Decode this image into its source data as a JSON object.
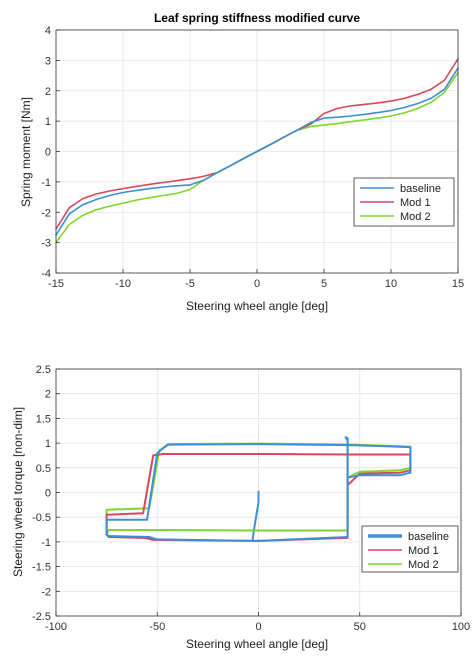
{
  "colors": {
    "baseline": "#3a8fd6",
    "mod1": "#d9475a",
    "mod2": "#7fd62d",
    "grid": "#e3e3e3",
    "axis": "#333333"
  },
  "chart_data": [
    {
      "type": "line",
      "title": "Leaf spring stiffness modified curve",
      "xlabel": "Steering wheel angle [deg]",
      "ylabel": "Spring moment [Nm]",
      "xlim": [
        -15,
        15
      ],
      "ylim": [
        -4,
        4
      ],
      "xticks": [
        -15,
        -10,
        -5,
        0,
        5,
        10,
        15
      ],
      "yticks": [
        -4,
        -3,
        -2,
        -1,
        0,
        1,
        2,
        3,
        4
      ],
      "grid": true,
      "legend_position": "lower-right",
      "series": [
        {
          "name": "baseline",
          "color_key": "baseline",
          "x": [
            -15,
            -14,
            -13,
            -12,
            -11,
            -10,
            -9,
            -8,
            -7,
            -6,
            -5,
            -4,
            -3,
            -2,
            -1,
            0,
            1,
            2,
            3,
            4,
            5,
            6,
            7,
            8,
            9,
            10,
            11,
            12,
            13,
            14,
            15
          ],
          "y": [
            -2.75,
            -2.05,
            -1.75,
            -1.58,
            -1.45,
            -1.35,
            -1.28,
            -1.22,
            -1.17,
            -1.13,
            -1.1,
            -0.95,
            -0.7,
            -0.47,
            -0.23,
            0,
            0.23,
            0.47,
            0.7,
            0.95,
            1.1,
            1.13,
            1.17,
            1.22,
            1.28,
            1.35,
            1.45,
            1.58,
            1.75,
            2.05,
            2.75
          ]
        },
        {
          "name": "Mod 1",
          "color_key": "mod1",
          "x": [
            -15,
            -14,
            -13,
            -12,
            -11,
            -10,
            -9,
            -8,
            -7,
            -6,
            -5,
            -4,
            -3,
            -2,
            -1,
            0,
            1,
            2,
            3,
            4,
            5,
            6,
            7,
            8,
            9,
            10,
            11,
            12,
            13,
            14,
            15
          ],
          "y": [
            -2.55,
            -1.85,
            -1.55,
            -1.4,
            -1.3,
            -1.22,
            -1.15,
            -1.08,
            -1.02,
            -0.96,
            -0.9,
            -0.82,
            -0.7,
            -0.47,
            -0.23,
            0,
            0.23,
            0.47,
            0.7,
            0.9,
            1.25,
            1.42,
            1.5,
            1.55,
            1.6,
            1.66,
            1.75,
            1.88,
            2.05,
            2.35,
            3.05
          ]
        },
        {
          "name": "Mod 2",
          "color_key": "mod2",
          "x": [
            -15,
            -14,
            -13,
            -12,
            -11,
            -10,
            -9,
            -8,
            -7,
            -6,
            -5,
            -4,
            -3,
            -2,
            -1,
            0,
            1,
            2,
            3,
            4,
            5,
            6,
            7,
            8,
            9,
            10,
            11,
            12,
            13,
            14,
            15
          ],
          "y": [
            -3.0,
            -2.4,
            -2.1,
            -1.92,
            -1.8,
            -1.7,
            -1.6,
            -1.52,
            -1.45,
            -1.38,
            -1.25,
            -0.95,
            -0.7,
            -0.47,
            -0.23,
            0,
            0.23,
            0.47,
            0.7,
            0.82,
            0.87,
            0.92,
            0.98,
            1.04,
            1.1,
            1.17,
            1.27,
            1.42,
            1.62,
            1.95,
            2.6
          ]
        }
      ]
    },
    {
      "type": "line",
      "title": "",
      "xlabel": "Steering wheel angle [deg]",
      "ylabel": "Steering wheel torque [non-dim]",
      "xlim": [
        -100,
        100
      ],
      "ylim": [
        -2.5,
        2.5
      ],
      "xticks": [
        -100,
        -50,
        0,
        50,
        100
      ],
      "yticks": [
        -2.5,
        -2,
        -1.5,
        -1,
        -0.5,
        0,
        0.5,
        1,
        1.5,
        2,
        2.5
      ],
      "grid": true,
      "legend_position": "lower-right",
      "series": [
        {
          "name": "baseline",
          "color_key": "baseline",
          "x": [
            -75,
            -75,
            -55,
            -50,
            -45,
            0,
            45,
            75,
            75,
            70,
            50,
            44,
            44,
            43,
            44,
            44,
            44,
            0,
            -50,
            -54,
            -74,
            -75
          ],
          "y": [
            -0.85,
            -0.55,
            -0.55,
            0.8,
            0.97,
            0.98,
            0.96,
            0.92,
            0.4,
            0.35,
            0.35,
            0.3,
            1.1,
            1.12,
            1.05,
            0.3,
            -0.9,
            -0.98,
            -0.95,
            -0.9,
            -0.88,
            -0.85
          ]
        },
        {
          "name": "Mod 1",
          "color_key": "mod1",
          "x": [
            -75,
            -75,
            -57,
            -52,
            -47,
            0,
            45,
            75,
            75,
            70,
            50,
            44,
            44,
            44,
            0,
            -52,
            -56,
            -74,
            -75
          ],
          "y": [
            -0.85,
            -0.45,
            -0.42,
            0.75,
            0.78,
            0.78,
            0.77,
            0.77,
            0.45,
            0.4,
            0.38,
            0.15,
            0.95,
            -0.92,
            -0.98,
            -0.96,
            -0.92,
            -0.9,
            -0.85
          ]
        },
        {
          "name": "Mod 2",
          "color_key": "mod2",
          "x": [
            -75,
            -75,
            -54,
            -49,
            -44,
            0,
            45,
            75,
            75,
            70,
            50,
            44,
            44,
            0,
            -50,
            -74,
            -75
          ],
          "y": [
            -0.85,
            -0.35,
            -0.32,
            0.85,
            0.98,
            0.99,
            0.97,
            0.93,
            0.5,
            0.45,
            0.42,
            0.3,
            -0.77,
            -0.77,
            -0.76,
            -0.76,
            -0.85
          ]
        },
        {
          "name": "",
          "color_key": "baseline",
          "x": [
            -3,
            -2,
            0,
            0
          ],
          "y": [
            -0.98,
            -0.7,
            -0.2,
            0.02
          ]
        }
      ]
    }
  ]
}
